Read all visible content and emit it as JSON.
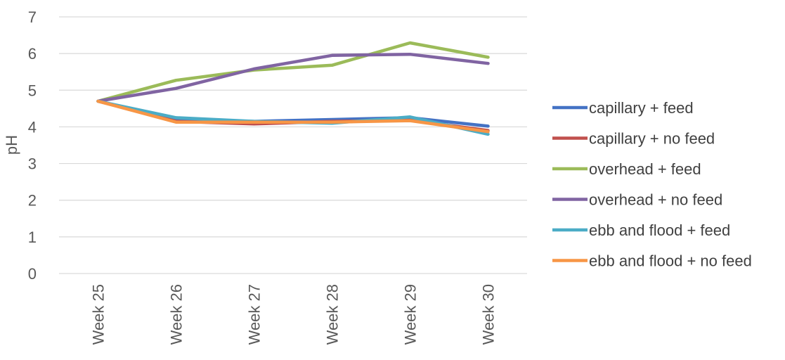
{
  "chart_data": {
    "type": "line",
    "title": "",
    "xlabel": "",
    "ylabel": "pH",
    "ylim": [
      0,
      7
    ],
    "yticks": [
      0,
      1,
      2,
      3,
      4,
      5,
      6,
      7
    ],
    "grid": "horizontal",
    "legend_position": "right",
    "categories": [
      "Week 25",
      "Week 26",
      "Week 27",
      "Week 28",
      "Week 29",
      "Week 30"
    ],
    "series": [
      {
        "name": "capillary + feed",
        "color": "#4472C4",
        "values": [
          4.7,
          4.2,
          4.15,
          4.2,
          4.25,
          4.02
        ]
      },
      {
        "name": "capillary + no feed",
        "color": "#C0504D",
        "values": [
          4.7,
          4.15,
          4.08,
          4.15,
          4.18,
          3.9
        ]
      },
      {
        "name": "overhead + feed",
        "color": "#9BBB59",
        "values": [
          4.7,
          5.27,
          5.55,
          5.68,
          6.29,
          5.9
        ]
      },
      {
        "name": "overhead + no feed",
        "color": "#8064A2",
        "values": [
          4.7,
          5.05,
          5.58,
          5.95,
          5.98,
          5.73
        ]
      },
      {
        "name": "ebb and flood + feed",
        "color": "#4BACC6",
        "values": [
          4.7,
          4.25,
          4.15,
          4.1,
          4.27,
          3.8
        ]
      },
      {
        "name": "ebb and flood + no feed",
        "color": "#F79646",
        "values": [
          4.7,
          4.13,
          4.13,
          4.13,
          4.17,
          3.87
        ]
      }
    ]
  }
}
